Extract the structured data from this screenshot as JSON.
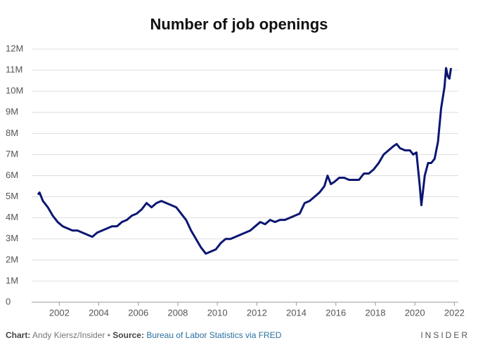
{
  "chart_data": {
    "type": "line",
    "title": "Number of job openings",
    "credit_label": "Chart:",
    "credit": "Andy Kiersz/Insider •",
    "source_label": "Source:",
    "source": "Bureau of Labor Statistics via FRED",
    "brand": "INSIDER",
    "x": [
      2000.92,
      2001.0,
      2001.17,
      2001.42,
      2001.67,
      2001.92,
      2002.17,
      2002.42,
      2002.67,
      2002.92,
      2003.17,
      2003.42,
      2003.67,
      2003.92,
      2004.17,
      2004.42,
      2004.67,
      2004.92,
      2005.17,
      2005.42,
      2005.67,
      2005.92,
      2006.17,
      2006.42,
      2006.67,
      2006.92,
      2007.17,
      2007.42,
      2007.67,
      2007.92,
      2008.17,
      2008.42,
      2008.67,
      2008.92,
      2009.17,
      2009.42,
      2009.67,
      2009.92,
      2010.17,
      2010.42,
      2010.67,
      2010.92,
      2011.17,
      2011.42,
      2011.67,
      2011.92,
      2012.17,
      2012.42,
      2012.67,
      2012.92,
      2013.17,
      2013.42,
      2013.67,
      2013.92,
      2014.17,
      2014.42,
      2014.67,
      2014.92,
      2015.17,
      2015.42,
      2015.58,
      2015.75,
      2015.92,
      2016.17,
      2016.42,
      2016.67,
      2016.92,
      2017.17,
      2017.42,
      2017.67,
      2017.92,
      2018.17,
      2018.42,
      2018.67,
      2018.92,
      2019.08,
      2019.25,
      2019.5,
      2019.75,
      2019.92,
      2020.08,
      2020.25,
      2020.33,
      2020.5,
      2020.67,
      2020.83,
      2021.0,
      2021.17,
      2021.33,
      2021.5,
      2021.58,
      2021.67,
      2021.75,
      2021.83
    ],
    "series": [
      {
        "name": "Job openings",
        "color": "#0b1672",
        "values": [
          5.1,
          5.2,
          4.8,
          4.5,
          4.1,
          3.8,
          3.6,
          3.5,
          3.4,
          3.4,
          3.3,
          3.2,
          3.1,
          3.3,
          3.4,
          3.5,
          3.6,
          3.6,
          3.8,
          3.9,
          4.1,
          4.2,
          4.4,
          4.7,
          4.5,
          4.7,
          4.8,
          4.7,
          4.6,
          4.5,
          4.2,
          3.9,
          3.4,
          3.0,
          2.6,
          2.3,
          2.4,
          2.5,
          2.8,
          3.0,
          3.0,
          3.1,
          3.2,
          3.3,
          3.4,
          3.6,
          3.8,
          3.7,
          3.9,
          3.8,
          3.9,
          3.9,
          4.0,
          4.1,
          4.2,
          4.7,
          4.8,
          5.0,
          5.2,
          5.5,
          6.0,
          5.6,
          5.7,
          5.9,
          5.9,
          5.8,
          5.8,
          5.8,
          6.1,
          6.1,
          6.3,
          6.6,
          7.0,
          7.2,
          7.4,
          7.5,
          7.3,
          7.2,
          7.2,
          7.0,
          7.1,
          5.5,
          4.6,
          6.0,
          6.6,
          6.6,
          6.8,
          7.6,
          9.2,
          10.2,
          11.1,
          10.7,
          10.6,
          11.1
        ]
      }
    ],
    "xlim": [
      2000.6,
      2022.2
    ],
    "xticks": [
      2002,
      2004,
      2006,
      2008,
      2010,
      2012,
      2014,
      2016,
      2018,
      2020,
      2022
    ],
    "ylim": [
      0,
      12
    ],
    "yticks": [
      0,
      {
        "value": 1,
        "label": "1M"
      },
      {
        "value": 2,
        "label": "2M"
      },
      {
        "value": 3,
        "label": "3M"
      },
      {
        "value": 4,
        "label": "4M"
      },
      {
        "value": 5,
        "label": "5M"
      },
      {
        "value": 6,
        "label": "6M"
      },
      {
        "value": 7,
        "label": "7M"
      },
      {
        "value": 8,
        "label": "8M"
      },
      {
        "value": 9,
        "label": "9M"
      },
      {
        "value": 10,
        "label": "10M"
      },
      {
        "value": 11,
        "label": "11M"
      },
      {
        "value": 12,
        "label": "12M"
      }
    ],
    "grid": true
  }
}
